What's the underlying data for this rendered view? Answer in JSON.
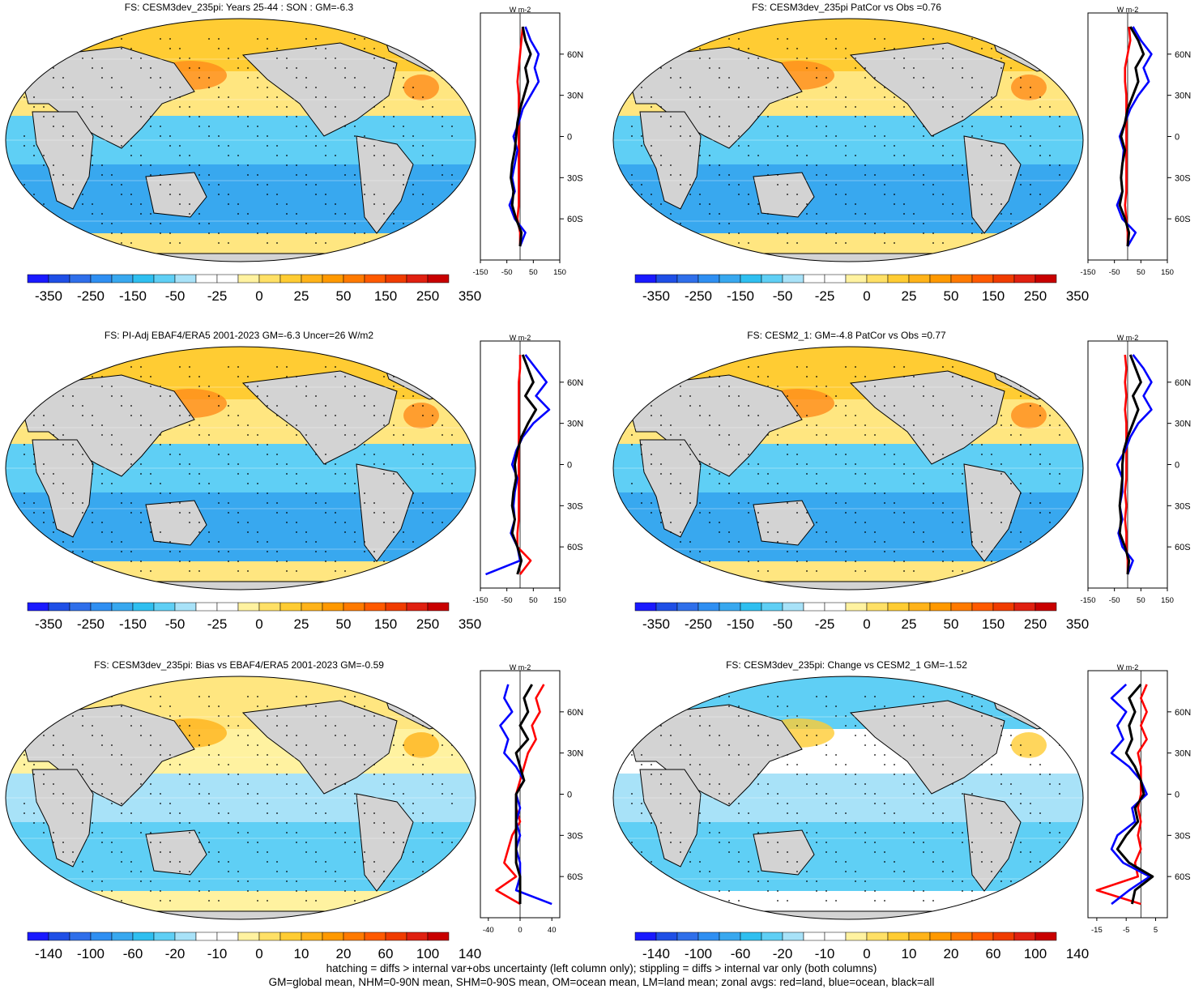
{
  "panels": [
    {
      "title": "FS: CESM3dev_235pi: Years 25-44 : SON : GM=-6.3",
      "map_theme": "model",
      "colorbar": {
        "labels": [
          "-350",
          "-250",
          "-150",
          "-50",
          "-25",
          "0",
          "25",
          "50",
          "150",
          "250",
          "350"
        ]
      },
      "zonal": {
        "xlim": [
          -150,
          150
        ],
        "xticks": [
          "-150",
          "-50",
          "50",
          "150"
        ],
        "units": "W m-2"
      }
    },
    {
      "title": "FS: CESM3dev_235pi PatCor vs Obs =0.76",
      "map_theme": "model",
      "colorbar": {
        "labels": [
          "-350",
          "-250",
          "-150",
          "-50",
          "-25",
          "0",
          "25",
          "50",
          "150",
          "250",
          "350"
        ]
      },
      "zonal": {
        "xlim": [
          -150,
          150
        ],
        "xticks": [
          "-150",
          "-50",
          "50",
          "150"
        ],
        "units": "W m-2"
      }
    },
    {
      "title": "FS: PI-Adj EBAF4/ERA5 2001-2023 GM=-6.3 Uncer=26 W/m2",
      "map_theme": "model",
      "colorbar": {
        "labels": [
          "-350",
          "-250",
          "-150",
          "-50",
          "-25",
          "0",
          "25",
          "50",
          "150",
          "250",
          "350"
        ]
      },
      "zonal": {
        "xlim": [
          -150,
          150
        ],
        "xticks": [
          "-150",
          "-50",
          "50",
          "150"
        ],
        "units": "W m-2"
      }
    },
    {
      "title": "FS: CESM2_1: GM=-4.8 PatCor vs Obs =0.77",
      "map_theme": "model",
      "colorbar": {
        "labels": [
          "-350",
          "-250",
          "-150",
          "-50",
          "-25",
          "0",
          "25",
          "50",
          "150",
          "250",
          "350"
        ]
      },
      "zonal": {
        "xlim": [
          -150,
          150
        ],
        "xticks": [
          "-150",
          "-50",
          "50",
          "150"
        ],
        "units": "W m-2"
      }
    },
    {
      "title": "FS: CESM3dev_235pi: Bias vs EBAF4/ERA5 2001-2023  GM=-0.59",
      "map_theme": "bias",
      "colorbar": {
        "labels": [
          "-140",
          "-100",
          "-60",
          "-20",
          "-10",
          "0",
          "10",
          "20",
          "60",
          "100",
          "140"
        ]
      },
      "zonal": {
        "xlim": [
          -50,
          50
        ],
        "xticks": [
          "-40",
          "0",
          "40"
        ],
        "units": "W m-2"
      }
    },
    {
      "title": "FS: CESM3dev_235pi: Change vs CESM2_1 GM=-1.52",
      "map_theme": "change",
      "colorbar": {
        "labels": [
          "-140",
          "-100",
          "-60",
          "-20",
          "-10",
          "0",
          "10",
          "20",
          "60",
          "100",
          "140"
        ]
      },
      "zonal": {
        "xlim": [
          -18,
          9
        ],
        "xticks": [
          "-15",
          "-5",
          "5"
        ],
        "units": "W m-2"
      }
    }
  ],
  "lat_labels": [
    "60N",
    "30N",
    "0",
    "30S",
    "60S"
  ],
  "colorbar_colors": [
    "#1a1aff",
    "#1f4fe6",
    "#2f6fea",
    "#2f8ff2",
    "#38a8ef",
    "#2fbff0",
    "#5fcff5",
    "#a8e2f8",
    "#ffffff",
    "#ffffff",
    "#fff2a0",
    "#ffe066",
    "#ffcc33",
    "#ffb31a",
    "#ff9900",
    "#ff7a00",
    "#ff5a00",
    "#f03c00",
    "#e02010",
    "#c80000"
  ],
  "series_colors": {
    "land": "#ff0000",
    "ocean": "#0000ff",
    "all": "#000000"
  },
  "chart_data": [
    {
      "type": "line",
      "title": "FS: CESM3dev_235pi: Years 25-44 : SON : GM=-6.3",
      "ylabel": "",
      "xlabel": "W m-2",
      "xlim": [
        -150,
        150
      ],
      "ylim": [
        -90,
        90
      ],
      "y": [
        80,
        70,
        60,
        50,
        40,
        30,
        20,
        10,
        0,
        -10,
        -20,
        -30,
        -40,
        -50,
        -60,
        -70,
        -80
      ],
      "series": [
        {
          "name": "land",
          "values": [
            10,
            5,
            0,
            -5,
            -10,
            -5,
            -5,
            -5,
            -5,
            -5,
            -5,
            -5,
            -5,
            -5,
            -10,
            0,
            0
          ]
        },
        {
          "name": "ocean",
          "values": [
            20,
            40,
            70,
            55,
            70,
            40,
            10,
            -5,
            -25,
            -10,
            -20,
            -30,
            -20,
            -40,
            -20,
            20,
            0
          ]
        },
        {
          "name": "all",
          "values": [
            10,
            20,
            40,
            20,
            30,
            15,
            0,
            -10,
            -15,
            -20,
            -30,
            -35,
            -25,
            -30,
            -15,
            5,
            0
          ]
        }
      ]
    },
    {
      "type": "line",
      "title": "FS: CESM3dev_235pi PatCor vs Obs =0.76",
      "xlabel": "W m-2",
      "xlim": [
        -150,
        150
      ],
      "ylim": [
        -90,
        90
      ],
      "y": [
        80,
        70,
        60,
        50,
        40,
        30,
        20,
        10,
        0,
        -10,
        -20,
        -30,
        -40,
        -50,
        -60,
        -70,
        -80
      ],
      "series": [
        {
          "name": "land",
          "values": [
            5,
            10,
            0,
            -10,
            -10,
            -5,
            -5,
            -5,
            -5,
            -5,
            -5,
            -5,
            -5,
            -10,
            -5,
            0,
            0
          ]
        },
        {
          "name": "ocean",
          "values": [
            20,
            50,
            90,
            60,
            80,
            40,
            10,
            -10,
            -30,
            -15,
            -20,
            -25,
            -20,
            -40,
            -20,
            30,
            0
          ]
        },
        {
          "name": "all",
          "values": [
            10,
            40,
            60,
            30,
            40,
            20,
            0,
            -10,
            -25,
            -10,
            -20,
            -25,
            -20,
            -30,
            -10,
            5,
            0
          ]
        }
      ]
    },
    {
      "type": "line",
      "title": "FS: PI-Adj EBAF4/ERA5 2001-2023 GM=-6.3 Uncer=26 W/m2",
      "xlabel": "W m-2",
      "xlim": [
        -150,
        150
      ],
      "ylim": [
        -90,
        90
      ],
      "y": [
        80,
        70,
        60,
        50,
        40,
        30,
        20,
        10,
        0,
        -10,
        -20,
        -30,
        -40,
        -50,
        -60,
        -70,
        -80
      ],
      "series": [
        {
          "name": "land",
          "values": [
            0,
            0,
            -5,
            -5,
            -5,
            -5,
            -5,
            -5,
            -5,
            -5,
            -5,
            -5,
            -5,
            -10,
            -10,
            40,
            0
          ]
        },
        {
          "name": "ocean",
          "values": [
            20,
            60,
            100,
            60,
            110,
            50,
            10,
            -15,
            -30,
            -10,
            -20,
            -25,
            -20,
            -35,
            -10,
            0,
            -130
          ]
        },
        {
          "name": "all",
          "values": [
            10,
            30,
            50,
            20,
            60,
            30,
            5,
            -10,
            -20,
            -15,
            -25,
            -30,
            -20,
            -30,
            -10,
            5,
            -10
          ]
        }
      ]
    },
    {
      "type": "line",
      "title": "FS: CESM2_1: GM=-4.8 PatCor vs Obs =0.77",
      "xlabel": "W m-2",
      "xlim": [
        -150,
        150
      ],
      "ylim": [
        -90,
        90
      ],
      "y": [
        80,
        70,
        60,
        50,
        40,
        30,
        20,
        10,
        0,
        -10,
        -20,
        -30,
        -40,
        -50,
        -60,
        -70,
        -80
      ],
      "series": [
        {
          "name": "land",
          "values": [
            -10,
            -5,
            -10,
            -5,
            -10,
            -5,
            -5,
            -5,
            -5,
            -5,
            -10,
            -5,
            -10,
            -5,
            -5,
            0,
            0
          ]
        },
        {
          "name": "ocean",
          "values": [
            20,
            60,
            90,
            60,
            90,
            40,
            10,
            -10,
            -40,
            -20,
            -20,
            -30,
            -20,
            -35,
            -20,
            20,
            0
          ]
        },
        {
          "name": "all",
          "values": [
            10,
            30,
            50,
            20,
            40,
            20,
            0,
            -15,
            -20,
            -20,
            -25,
            -30,
            -25,
            -30,
            -10,
            5,
            0
          ]
        }
      ]
    },
    {
      "type": "line",
      "title": "FS: CESM3dev_235pi: Bias vs EBAF4/ERA5 2001-2023  GM=-0.59",
      "xlabel": "W m-2",
      "xlim": [
        -50,
        50
      ],
      "ylim": [
        -90,
        90
      ],
      "y": [
        80,
        70,
        60,
        50,
        40,
        30,
        20,
        10,
        0,
        -10,
        -20,
        -30,
        -40,
        -50,
        -60,
        -70,
        -80
      ],
      "series": [
        {
          "name": "land",
          "values": [
            30,
            20,
            25,
            15,
            20,
            10,
            5,
            0,
            -5,
            -5,
            0,
            -10,
            -15,
            -20,
            -5,
            -30,
            0
          ]
        },
        {
          "name": "ocean",
          "values": [
            -15,
            -20,
            -10,
            -25,
            -15,
            -20,
            -5,
            5,
            -5,
            0,
            -5,
            0,
            -5,
            0,
            0,
            -5,
            40
          ]
        },
        {
          "name": "all",
          "values": [
            15,
            5,
            10,
            0,
            10,
            -5,
            0,
            5,
            -5,
            -5,
            -5,
            -5,
            -5,
            -5,
            0,
            0,
            0
          ]
        }
      ]
    },
    {
      "type": "line",
      "title": "FS: CESM3dev_235pi: Change vs CESM2_1 GM=-1.52",
      "xlabel": "W m-2",
      "xlim": [
        -18,
        9
      ],
      "ylim": [
        -90,
        90
      ],
      "y": [
        80,
        70,
        60,
        50,
        40,
        30,
        20,
        10,
        0,
        -10,
        -20,
        -30,
        -40,
        -50,
        -60,
        -70,
        -80
      ],
      "series": [
        {
          "name": "land",
          "values": [
            2,
            0,
            2,
            0,
            2,
            -1,
            0,
            0,
            0,
            -1,
            0,
            -1,
            0,
            -2,
            -1,
            -15,
            0
          ]
        },
        {
          "name": "ocean",
          "values": [
            -5,
            -10,
            -5,
            -8,
            -6,
            -10,
            -4,
            0,
            2,
            -3,
            -2,
            -8,
            -10,
            -6,
            3,
            -4,
            -10
          ]
        },
        {
          "name": "all",
          "values": [
            0,
            -4,
            -2,
            -4,
            -3,
            -5,
            -2,
            0,
            1,
            -2,
            -1,
            -5,
            -8,
            -4,
            4,
            -2,
            -3
          ]
        }
      ]
    }
  ],
  "footnote": {
    "line1": "hatching = diffs > internal var+obs uncertainty (left column only); stippling = diffs > internal var only (both columns)",
    "line2": "GM=global mean, NHM=0-90N mean, SHM=0-90S mean, OM=ocean mean, LM=land mean; zonal avgs: red=land, blue=ocean, black=all"
  }
}
